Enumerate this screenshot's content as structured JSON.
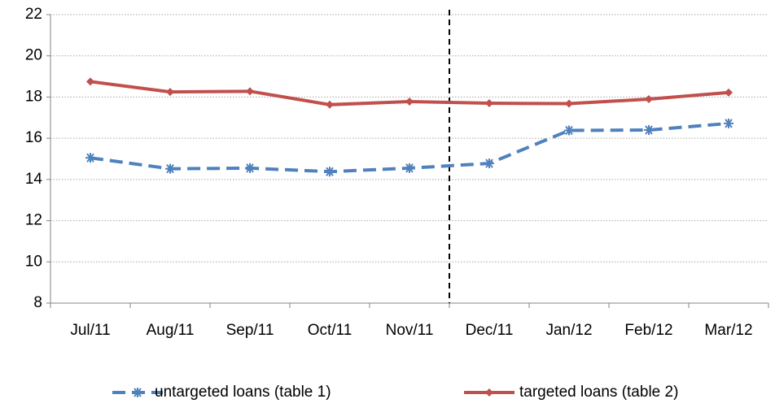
{
  "chart_data": {
    "type": "line",
    "categories": [
      "Jul/11",
      "Aug/11",
      "Sep/11",
      "Oct/11",
      "Nov/11",
      "Dec/11",
      "Jan/12",
      "Feb/12",
      "Mar/12"
    ],
    "series": [
      {
        "name": "untargeted loans (table 1)",
        "color": "#4f81bd",
        "values": [
          15.05,
          14.52,
          14.55,
          14.38,
          14.55,
          14.78,
          16.38,
          16.4,
          16.72
        ]
      },
      {
        "name": "targeted loans (table 2)",
        "color": "#c0504d",
        "values": [
          18.75,
          18.25,
          18.28,
          17.63,
          17.78,
          17.7,
          17.68,
          17.9,
          18.22
        ]
      }
    ],
    "ylim": [
      8,
      22
    ],
    "yticks": [
      8,
      10,
      12,
      14,
      16,
      18,
      20,
      22
    ],
    "grid": true,
    "legend": "bottom"
  }
}
